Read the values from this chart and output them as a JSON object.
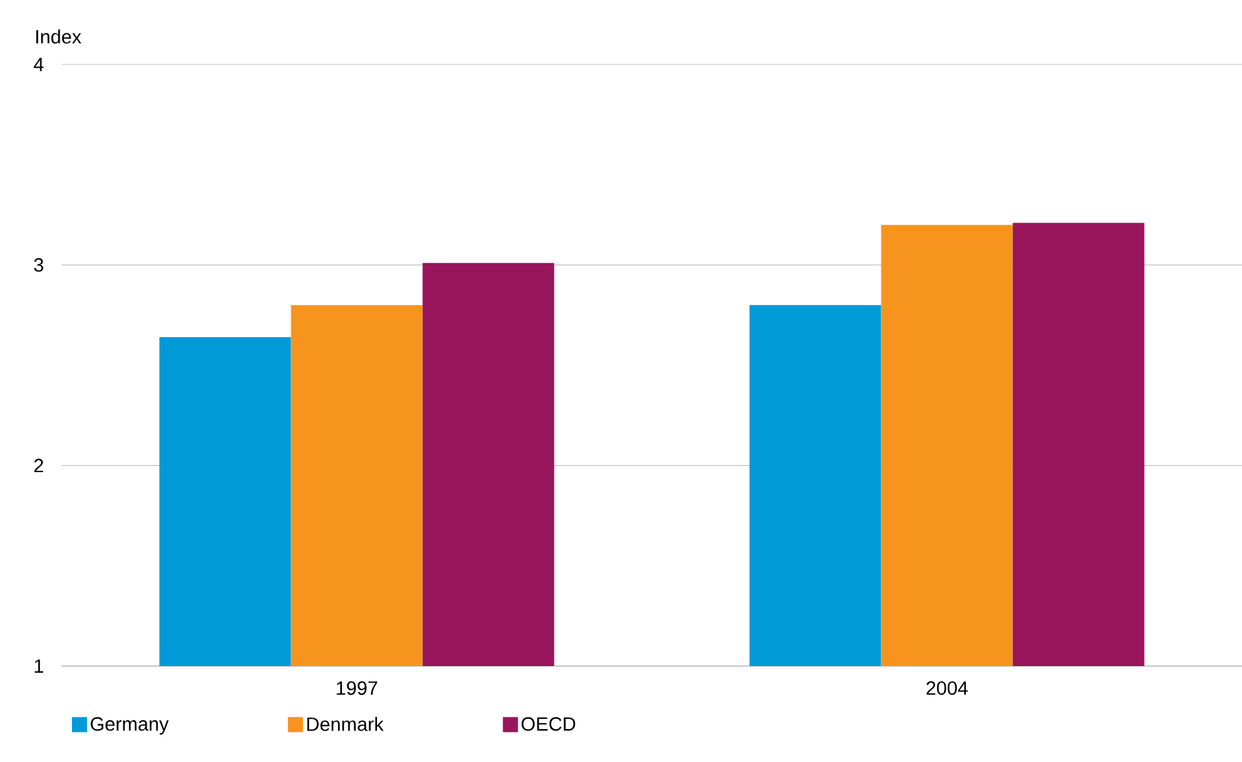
{
  "chart_data": {
    "type": "bar",
    "ylabel": "Index",
    "categories": [
      "1997",
      "2004"
    ],
    "series": [
      {
        "name": "Germany",
        "color": "#009ad8",
        "values": [
          2.64,
          2.8
        ]
      },
      {
        "name": "Denmark",
        "color": "#f7941d",
        "values": [
          2.8,
          3.2
        ]
      },
      {
        "name": "OECD",
        "color": "#98155b",
        "values": [
          3.01,
          3.21
        ]
      }
    ],
    "ylim": [
      1,
      4
    ],
    "yticks": [
      1,
      2,
      3,
      4
    ],
    "grid": "y",
    "legend": "bottom"
  }
}
